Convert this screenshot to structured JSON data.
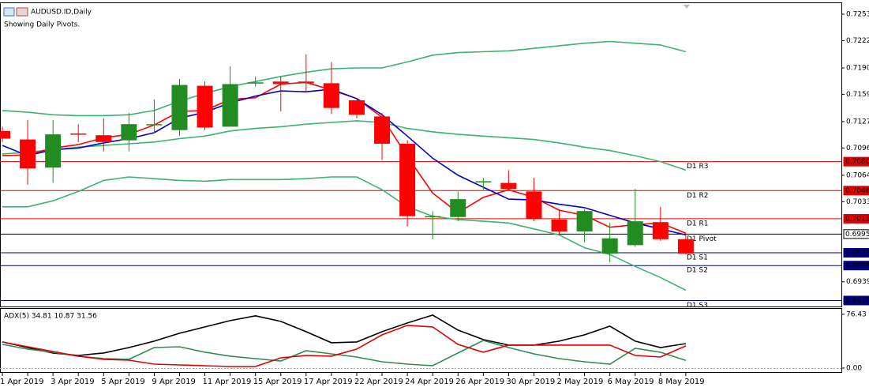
{
  "chart_data": [
    {
      "type": "candlestick",
      "title": "AUDUSD.ID,Daily",
      "subtitle": "Showing Daily Pivots.",
      "categories": [
        "1 Apr 2019",
        null,
        "3 Apr 2019",
        null,
        "5 Apr 2019",
        null,
        "9 Apr 2019",
        null,
        "11 Apr 2019",
        null,
        "15 Apr 2019",
        null,
        "17 Apr 2019",
        null,
        "22 Apr 2019",
        null,
        "24 Apr 2019",
        null,
        "26 Apr 2019",
        null,
        "30 Apr 2019",
        null,
        "2 May 2019",
        null,
        "6 May 2019",
        null,
        "8 May 2019",
        null
      ],
      "open": [
        0.7116,
        0.7106,
        0.7073,
        0.7113,
        0.7111,
        0.7105,
        0.7123,
        0.7117,
        0.7169,
        0.7121,
        0.7172,
        0.7174,
        0.7174,
        0.7172,
        0.7152,
        0.7133,
        0.7101,
        0.7015,
        0.7015,
        0.7056,
        0.7055,
        0.7045,
        0.7012,
        0.6998,
        0.6972,
        0.6982,
        0.7009,
        0.6989
      ],
      "high": [
        0.7121,
        0.7129,
        0.7129,
        0.7124,
        0.7131,
        0.7137,
        0.7153,
        0.7177,
        0.7174,
        0.7192,
        0.718,
        0.718,
        0.7206,
        0.7197,
        0.7154,
        0.7137,
        0.7105,
        0.7022,
        0.7045,
        0.7061,
        0.707,
        0.7061,
        0.7024,
        0.7024,
        0.7008,
        0.7048,
        0.7027,
        0.6995
      ],
      "low": [
        0.7103,
        0.7053,
        0.7055,
        0.7103,
        0.7092,
        0.7092,
        0.7114,
        0.711,
        0.7117,
        0.7121,
        0.7168,
        0.7139,
        0.7162,
        0.7136,
        0.7131,
        0.7082,
        0.7004,
        0.6989,
        0.701,
        0.7047,
        0.7047,
        0.701,
        0.6995,
        0.6985,
        0.6962,
        0.698,
        0.6987,
        0.6971
      ],
      "close": [
        0.7107,
        0.7072,
        0.7112,
        0.7112,
        0.7103,
        0.7124,
        0.7124,
        0.717,
        0.712,
        0.7171,
        0.7173,
        0.7171,
        0.7172,
        0.7143,
        0.7135,
        0.7101,
        0.7016,
        0.7016,
        0.7036,
        0.7057,
        0.7048,
        0.7013,
        0.6998,
        0.7022,
        0.699,
        0.701,
        0.6989,
        0.6972
      ],
      "up_color": "#228b22",
      "down_color": "#ff0000",
      "series": [
        {
          "color": "#3cb371",
          "values": [
            0.714,
            0.7138,
            0.7135,
            0.7134,
            0.7134,
            0.7135,
            0.714,
            0.7151,
            0.716,
            0.7168,
            0.7174,
            0.718,
            0.7185,
            0.7189,
            0.719,
            0.719,
            0.7197,
            0.7205,
            0.7208,
            0.7209,
            0.721,
            0.7213,
            0.7216,
            0.7219,
            0.7221,
            0.7219,
            0.7217,
            0.7209
          ]
        },
        {
          "color": "#3cb371",
          "values": [
            0.7089,
            0.7091,
            0.7094,
            0.7097,
            0.7099,
            0.7101,
            0.7103,
            0.7107,
            0.711,
            0.7116,
            0.7119,
            0.7121,
            0.7124,
            0.7126,
            0.7128,
            0.7126,
            0.7119,
            0.7115,
            0.7112,
            0.711,
            0.7108,
            0.7106,
            0.7102,
            0.7097,
            0.7093,
            0.7087,
            0.708,
            0.707
          ]
        },
        {
          "color": "#3cb371",
          "values": [
            0.7027,
            0.7027,
            0.7034,
            0.7045,
            0.7058,
            0.7062,
            0.706,
            0.7058,
            0.7057,
            0.7059,
            0.7059,
            0.7059,
            0.706,
            0.7062,
            0.7062,
            0.7047,
            0.7027,
            0.7016,
            0.7012,
            0.701,
            0.7008,
            0.7001,
            0.6994,
            0.6979,
            0.6971,
            0.6957,
            0.6944,
            0.6929
          ]
        },
        {
          "color": "#ff0000",
          "values": [
            0.7087,
            0.7088,
            0.7096,
            0.71,
            0.7108,
            0.7112,
            0.7123,
            0.7139,
            0.714,
            0.7153,
            0.7155,
            0.7171,
            0.7173,
            0.7164,
            0.7154,
            0.7132,
            0.7086,
            0.7043,
            0.702,
            0.7038,
            0.7047,
            0.7038,
            0.7023,
            0.7017,
            0.7003,
            0.7006,
            0.7008,
            0.6996
          ]
        },
        {
          "color": "#0000cd",
          "values": [
            0.7099,
            0.7087,
            0.7094,
            0.7096,
            0.7102,
            0.7107,
            0.7114,
            0.7131,
            0.7138,
            0.7149,
            0.7157,
            0.7163,
            0.7162,
            0.7165,
            0.7154,
            0.7135,
            0.711,
            0.7084,
            0.7064,
            0.705,
            0.7036,
            0.7035,
            0.703,
            0.7026,
            0.7017,
            0.7008,
            0.7001,
            0.6994
          ]
        }
      ],
      "pivots": [
        {
          "name": "D1 R3",
          "value": 0.708,
          "label": "0.7080",
          "color": "#e00000"
        },
        {
          "name": "D1 R2",
          "value": 0.7046,
          "label": "0.7046",
          "color": "#e00000"
        },
        {
          "name": "D1 R1",
          "value": 0.7013,
          "label": "0.7013",
          "color": "#e00000"
        },
        {
          "name": "D1 Pivot",
          "value": 0.6995,
          "label": "0.6995",
          "color": "#000000"
        },
        {
          "name": "D1 S1",
          "value": 0.6973,
          "label": "0.6973",
          "color": "#000080"
        },
        {
          "name": "D1 S2",
          "value": 0.6958,
          "label": "0.6958",
          "color": "#000080"
        },
        {
          "name": "D1 S3",
          "value": 0.6917,
          "label": "0.6917",
          "color": "#000080"
        }
      ],
      "ylim": [
        0.691,
        0.7266
      ],
      "yticks": [
        {
          "value": 0.7253,
          "label": "0.7253"
        },
        {
          "value": 0.7222,
          "label": "0.7222"
        },
        {
          "value": 0.719,
          "label": "0.7190"
        },
        {
          "value": 0.7159,
          "label": "0.7159"
        },
        {
          "value": 0.7127,
          "label": "0.7127"
        },
        {
          "value": 0.7096,
          "label": "0.7096"
        },
        {
          "value": 0.7064,
          "label": "0.7064"
        },
        {
          "value": 0.7033,
          "label": "0.7033"
        },
        {
          "value": 0.6939,
          "label": "0.6939"
        }
      ]
    },
    {
      "type": "line",
      "title": "ADX(5) 34.81 10.87 31.56",
      "series": [
        {
          "color": "#000000",
          "values": [
            37.1,
            29.2,
            21.4,
            18.0,
            21.4,
            29.2,
            38.2,
            49.5,
            58.4,
            67.4,
            74.2,
            66.3,
            51.7,
            36.0,
            37.1,
            51.7,
            64.1,
            75.3,
            54.0,
            40.5,
            32.6,
            32.6,
            38.2,
            47.2,
            59.6,
            38.2,
            29.2,
            34.81
          ]
        },
        {
          "color": "#2e8b57",
          "values": [
            33.7,
            27.0,
            22.5,
            16.9,
            13.5,
            12.4,
            29.2,
            30.3,
            22.5,
            16.9,
            13.5,
            10.1,
            24.7,
            20.2,
            15.7,
            9.0,
            5.6,
            3.4,
            21.4,
            39.3,
            29.2,
            20.2,
            13.5,
            9.0,
            5.6,
            28.1,
            22.5,
            10.87
          ]
        },
        {
          "color": "#e00000",
          "values": [
            37.1,
            30.3,
            23.6,
            16.9,
            12.4,
            11.2,
            5.6,
            4.5,
            3.4,
            2.2,
            2.2,
            14.6,
            18.0,
            16.9,
            27.0,
            47.2,
            60.7,
            58.4,
            33.7,
            22.5,
            32.6,
            32.6,
            32.6,
            32.6,
            32.6,
            18.0,
            15.7,
            31.56
          ]
        }
      ],
      "ylim": [
        0,
        83
      ],
      "yticks": [
        {
          "value": 76.43,
          "label": "76.43"
        },
        {
          "value": 0,
          "label": "0.00"
        }
      ]
    }
  ]
}
